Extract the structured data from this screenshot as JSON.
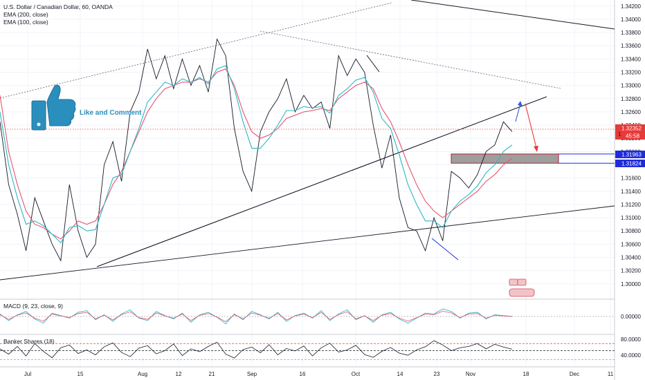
{
  "header": {
    "symbol_title": "U.S. Dollar / Canadian Dollar, 60, OANDA",
    "ema200_label": "EMA (200, close)",
    "ema100_label": "EMA (100, close)"
  },
  "annotation": {
    "like_text": "Like and Comment",
    "icon": "thumbs-up-icon"
  },
  "price_tags": {
    "last_price": "1.32352",
    "countdown": "45:58",
    "zone_top": "1.31963",
    "zone_bottom": "1.31824",
    "last_marker": "1"
  },
  "colors": {
    "price_line": "#131722",
    "ema_fast": "#2bb7c6",
    "ema_slow": "#e8546c",
    "trendline": "#131722",
    "zone_fill": "#9e9e9e",
    "zone_border": "#b51a2b",
    "level_blue": "#1e2bdc",
    "arrow_blue": "#2d5be3",
    "arrow_red": "#e83a3a",
    "last_price_bg": "#e83a3a",
    "level_tag_bg": "#1e2bdc"
  },
  "chart_data": {
    "type": "line",
    "title": "U.S. Dollar / Canadian Dollar, 60, OANDA",
    "xlabel": "",
    "ylabel": "",
    "ylim": [
      1.2982,
      1.3425
    ],
    "x_tick_labels": [
      "Jul",
      "15",
      "Aug",
      "12",
      "21",
      "Sep",
      "16",
      "Oct",
      "14",
      "23",
      "Nov",
      "18",
      "Dec",
      "11"
    ],
    "y_tick_labels": [
      "1.34200",
      "1.34000",
      "1.33800",
      "1.33600",
      "1.33400",
      "1.33200",
      "1.33000",
      "1.32800",
      "1.32600",
      "1.32400",
      "1.32200",
      "1.32000",
      "1.31800",
      "1.31600",
      "1.31400",
      "1.31200",
      "1.31000",
      "1.30800",
      "1.30600",
      "1.30400",
      "1.30200",
      "1.30000"
    ],
    "grid": true,
    "series": [
      {
        "name": "",
        "values": [
          1.3245,
          1.315,
          1.3105,
          1.305,
          1.313,
          1.3095,
          1.306,
          1.3035,
          1.315,
          1.308,
          1.304,
          1.306,
          1.318,
          1.3215,
          1.3155,
          1.326,
          1.329,
          1.3355,
          1.331,
          1.3345,
          1.3295,
          1.334,
          1.33,
          1.333,
          1.329,
          1.337,
          1.3345,
          1.3235,
          1.317,
          1.314,
          1.323,
          1.326,
          1.328,
          1.331,
          1.326,
          1.3285,
          1.3265,
          1.3275,
          1.3235,
          1.3345,
          1.3315,
          1.334,
          1.332,
          1.324,
          1.3175,
          1.3225,
          1.313,
          1.3085,
          1.308,
          1.305,
          1.31,
          1.3065,
          1.317,
          1.316,
          1.3145,
          1.3165,
          1.32,
          1.321,
          1.3245,
          1.323
        ]
      },
      {
        "name": "EMA (200, close)",
        "values": [
          1.3285,
          1.32,
          1.315,
          1.311,
          1.309,
          1.3085,
          1.3075,
          1.3068,
          1.308,
          1.3095,
          1.309,
          1.3095,
          1.312,
          1.315,
          1.317,
          1.32,
          1.323,
          1.326,
          1.328,
          1.3295,
          1.33,
          1.3305,
          1.3305,
          1.331,
          1.3305,
          1.332,
          1.3325,
          1.33,
          1.326,
          1.323,
          1.322,
          1.3225,
          1.3235,
          1.325,
          1.3255,
          1.326,
          1.3262,
          1.3265,
          1.3262,
          1.328,
          1.329,
          1.33,
          1.3305,
          1.3295,
          1.3265,
          1.3245,
          1.3215,
          1.318,
          1.315,
          1.3125,
          1.311,
          1.31,
          1.311,
          1.312,
          1.313,
          1.314,
          1.3155,
          1.3165,
          1.318,
          1.319
        ]
      },
      {
        "name": "EMA (100, close)",
        "values": [
          1.326,
          1.318,
          1.313,
          1.309,
          1.3095,
          1.3088,
          1.3075,
          1.3062,
          1.3085,
          1.3088,
          1.308,
          1.3082,
          1.312,
          1.316,
          1.3165,
          1.32,
          1.3235,
          1.3275,
          1.329,
          1.3305,
          1.33,
          1.331,
          1.3305,
          1.3312,
          1.3302,
          1.3325,
          1.333,
          1.3295,
          1.3245,
          1.3205,
          1.3205,
          1.322,
          1.324,
          1.3262,
          1.3262,
          1.3268,
          1.3266,
          1.3268,
          1.3258,
          1.3285,
          1.3295,
          1.3308,
          1.3312,
          1.329,
          1.325,
          1.3235,
          1.3195,
          1.315,
          1.312,
          1.3095,
          1.3095,
          1.3085,
          1.311,
          1.3125,
          1.3135,
          1.3148,
          1.3168,
          1.318,
          1.32,
          1.321
        ]
      }
    ],
    "overlays": {
      "demand_zone": [
        1.31824,
        1.31963
      ],
      "levels": [
        1.31963,
        1.31824
      ],
      "last_price": 1.32352
    }
  },
  "macd": {
    "title": "MACD (9, 23, close, 9)",
    "y_tick_label": "0.00000",
    "values": [
      0.3,
      -0.5,
      0.2,
      0.6,
      -0.3,
      -0.8,
      0.4,
      0.1,
      -0.2,
      0.5,
      0.7,
      -0.4,
      0.2,
      -0.6,
      0.3,
      0.8,
      -0.2,
      -0.5,
      0.6,
      0.1,
      -0.3,
      0.4,
      -0.7,
      0.2,
      0.5,
      -0.1,
      -0.9,
      0.3,
      -0.4,
      0.6,
      0.2,
      -0.3,
      0.5,
      -0.6,
      0.1,
      0.4,
      -0.2,
      0.7,
      -0.5,
      0.3,
      0.8,
      -0.4,
      0.1,
      -0.7,
      0.2,
      0.5,
      -0.3,
      -0.8,
      -0.2,
      0.4,
      0.3,
      0.9,
      0.6,
      -0.2,
      0.4,
      0.5,
      -0.3,
      0.2,
      0.1,
      0.0
    ]
  },
  "banker": {
    "title": "Banker Shares (18)",
    "y_tick_labels": [
      "80.0000",
      "40.0000"
    ],
    "levels": [
      70,
      50,
      25
    ],
    "ylim": [
      10,
      90
    ],
    "values": [
      55,
      40,
      62,
      35,
      70,
      48,
      30,
      58,
      66,
      42,
      52,
      38,
      61,
      72,
      45,
      33,
      57,
      64,
      41,
      50,
      69,
      36,
      55,
      47,
      62,
      74,
      40,
      29,
      53,
      60,
      44,
      67,
      38,
      56,
      49,
      63,
      35,
      58,
      71,
      46,
      52,
      65,
      39,
      31,
      48,
      59,
      43,
      37,
      52,
      61,
      78,
      66,
      50,
      58,
      62,
      70,
      55,
      68,
      60,
      54
    ]
  }
}
